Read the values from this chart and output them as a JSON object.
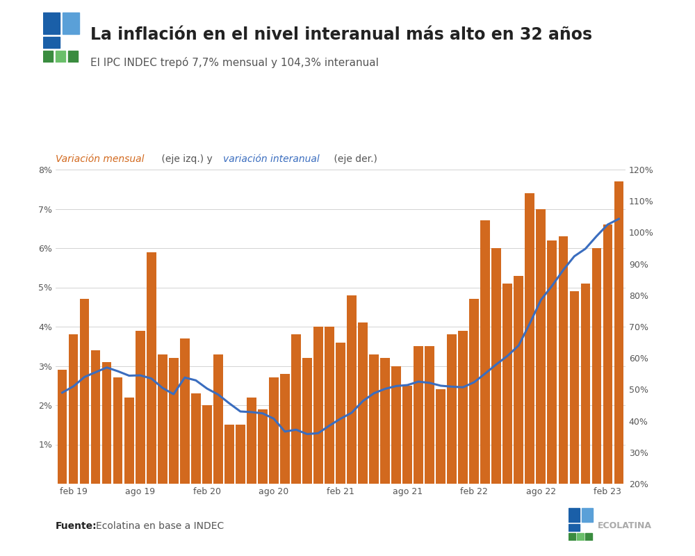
{
  "title": "La inflación en el nivel interanual más alto en 32 años",
  "subtitle": "El IPC INDEC trepó 7,7% mensual y 104,3% interanual",
  "source_bold": "Fuente:",
  "source_rest": " Ecolatina en base a INDEC",
  "months": [
    "ene-19",
    "feb-19",
    "mar-19",
    "abr-19",
    "may-19",
    "jun-19",
    "jul-19",
    "ago-19",
    "sep-19",
    "oct-19",
    "nov-19",
    "dic-19",
    "ene-20",
    "feb-20",
    "mar-20",
    "abr-20",
    "may-20",
    "jun-20",
    "jul-20",
    "ago-20",
    "sep-20",
    "oct-20",
    "nov-20",
    "dic-20",
    "ene-21",
    "feb-21",
    "mar-21",
    "abr-21",
    "may-21",
    "jun-21",
    "jul-21",
    "ago-21",
    "sep-21",
    "oct-21",
    "nov-21",
    "dic-21",
    "ene-22",
    "feb-22",
    "mar-22",
    "abr-22",
    "may-22",
    "jun-22",
    "jul-22",
    "ago-22",
    "sep-22",
    "oct-22",
    "nov-22",
    "dic-22",
    "ene-23",
    "feb-23",
    "mar-23"
  ],
  "mensual": [
    2.9,
    3.8,
    4.7,
    3.4,
    3.1,
    2.7,
    2.2,
    3.9,
    5.9,
    3.3,
    3.2,
    3.7,
    2.3,
    2.0,
    3.3,
    1.5,
    1.5,
    2.2,
    1.9,
    2.7,
    2.8,
    3.8,
    3.2,
    4.0,
    4.0,
    3.6,
    4.8,
    4.1,
    3.3,
    3.2,
    3.0,
    2.5,
    3.5,
    3.5,
    2.4,
    3.8,
    3.9,
    4.7,
    6.7,
    6.0,
    5.1,
    5.3,
    7.4,
    7.0,
    6.2,
    6.3,
    4.9,
    5.1,
    6.0,
    6.6,
    7.7
  ],
  "interanual": [
    49.0,
    51.0,
    54.0,
    55.5,
    57.0,
    55.8,
    54.4,
    54.5,
    53.5,
    50.5,
    48.5,
    53.8,
    52.9,
    50.3,
    48.4,
    45.6,
    43.0,
    42.8,
    42.4,
    40.7,
    36.6,
    37.2,
    35.8,
    36.1,
    38.5,
    40.7,
    42.6,
    46.3,
    48.8,
    50.2,
    51.1,
    51.4,
    52.5,
    52.1,
    51.2,
    50.9,
    50.7,
    52.3,
    55.1,
    58.0,
    60.7,
    64.0,
    71.0,
    78.5,
    83.0,
    88.0,
    92.4,
    94.8,
    98.8,
    102.5,
    104.3
  ],
  "bar_color": "#D2691E",
  "line_color": "#3a6dbf",
  "background_color": "#ffffff",
  "ylim_left": [
    0,
    8
  ],
  "ylim_right": [
    20,
    120
  ],
  "yticks_left": [
    1,
    2,
    3,
    4,
    5,
    6,
    7,
    8
  ],
  "yticks_right": [
    20,
    30,
    40,
    50,
    60,
    70,
    80,
    90,
    100,
    110,
    120
  ],
  "xtick_labels": [
    "feb 19",
    "ago 19",
    "feb 20",
    "ago 20",
    "feb 21",
    "ago 21",
    "feb 22",
    "ago 22",
    "feb 23"
  ],
  "xtick_positions": [
    1,
    7,
    13,
    19,
    25,
    31,
    37,
    43,
    49
  ],
  "orange_label": "#D2691E",
  "blue_label": "#3a6dbf",
  "gray_label": "#555555",
  "dark_label": "#222222",
  "logo_blue_dark": "#1a5fa8",
  "logo_blue_light": "#5aa0d8",
  "logo_green_dark": "#3a8c3f",
  "logo_green_light": "#6abf6a"
}
